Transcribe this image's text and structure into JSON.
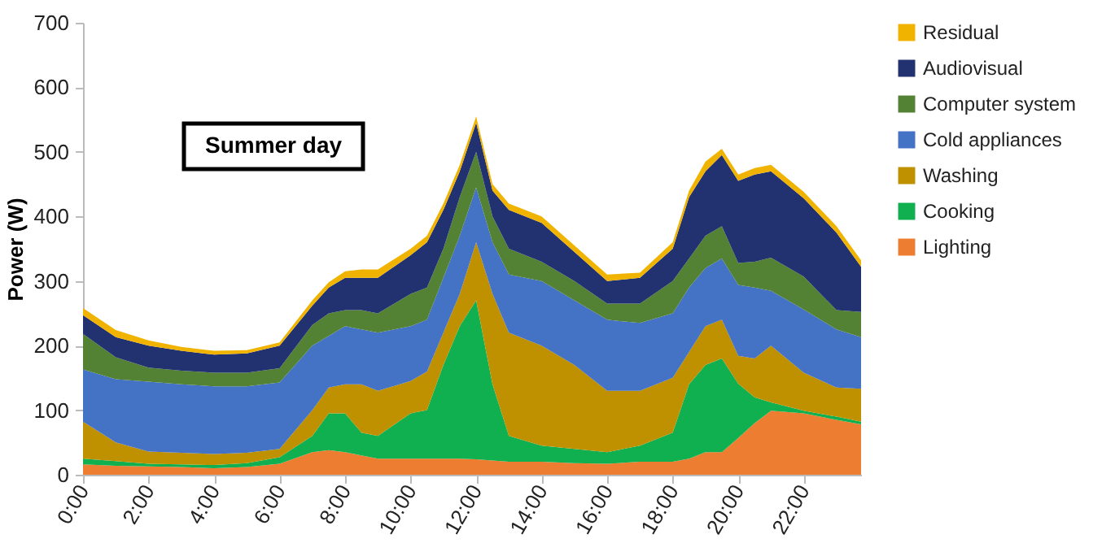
{
  "chart_data": {
    "type": "area",
    "stacked": true,
    "title": "Summer day",
    "ylabel": "Power (W)",
    "x": [
      0,
      1,
      2,
      3,
      4,
      5,
      6,
      7,
      7.5,
      8,
      8.5,
      9,
      10,
      10.5,
      11,
      11.5,
      12,
      12.5,
      13,
      14,
      15,
      16,
      17,
      18,
      18.5,
      19,
      19.5,
      20,
      20.5,
      21,
      22,
      23,
      23.75
    ],
    "xlim": [
      0,
      23.75
    ],
    "xticks": [
      {
        "value": 0,
        "label": "0:00"
      },
      {
        "value": 2,
        "label": "2:00"
      },
      {
        "value": 4,
        "label": "4:00"
      },
      {
        "value": 6,
        "label": "6:00"
      },
      {
        "value": 8,
        "label": "8:00"
      },
      {
        "value": 10,
        "label": "10:00"
      },
      {
        "value": 12,
        "label": "12:00"
      },
      {
        "value": 14,
        "label": "14:00"
      },
      {
        "value": 16,
        "label": "16:00"
      },
      {
        "value": 18,
        "label": "18:00"
      },
      {
        "value": 20,
        "label": "20:00"
      },
      {
        "value": 22,
        "label": "22:00"
      }
    ],
    "ylim": [
      0,
      700
    ],
    "yticks": [
      0,
      100,
      200,
      300,
      400,
      500,
      600,
      700
    ],
    "grid": false,
    "legend": "right",
    "series": [
      {
        "name": "Lighting",
        "color": "#ed7d31",
        "values": [
          16,
          14,
          13,
          12,
          10,
          12,
          17,
          35,
          38,
          35,
          30,
          25,
          25,
          25,
          25,
          25,
          24,
          22,
          20,
          20,
          18,
          17,
          20,
          20,
          25,
          35,
          35,
          57,
          80,
          99,
          95,
          85,
          78
        ]
      },
      {
        "name": "Cooking",
        "color": "#10b050",
        "values": [
          9,
          7,
          4,
          4,
          5,
          6,
          10,
          25,
          57,
          60,
          35,
          35,
          70,
          75,
          145,
          205,
          246,
          118,
          40,
          25,
          22,
          18,
          25,
          45,
          115,
          135,
          145,
          84,
          40,
          13,
          4,
          5,
          4
        ]
      },
      {
        "name": "Washing",
        "color": "#bf9000",
        "values": [
          57,
          29,
          19,
          18,
          17,
          16,
          13,
          40,
          40,
          45,
          75,
          70,
          50,
          60,
          50,
          50,
          90,
          140,
          160,
          155,
          130,
          95,
          85,
          85,
          50,
          60,
          60,
          43,
          60,
          88,
          59,
          45,
          51
        ]
      },
      {
        "name": "Cold appliances",
        "color": "#4472c4",
        "values": [
          81,
          98,
          108,
          106,
          105,
          103,
          103,
          100,
          80,
          90,
          85,
          90,
          85,
          80,
          85,
          90,
          85,
          80,
          90,
          100,
          100,
          110,
          105,
          100,
          100,
          90,
          95,
          110,
          110,
          85,
          98,
          90,
          80
        ]
      },
      {
        "name": "Computer system",
        "color": "#548235",
        "values": [
          55,
          34,
          22,
          21,
          21,
          21,
          22,
          32,
          35,
          25,
          30,
          30,
          50,
          50,
          45,
          60,
          55,
          40,
          40,
          30,
          30,
          25,
          30,
          50,
          45,
          50,
          50,
          34,
          40,
          51,
          51,
          30,
          39
        ]
      },
      {
        "name": "Audiovisual",
        "color": "#223170",
        "values": [
          29,
          31,
          34,
          31,
          28,
          30,
          35,
          30,
          40,
          50,
          50,
          55,
          60,
          70,
          60,
          40,
          45,
          40,
          60,
          60,
          45,
          35,
          40,
          50,
          95,
          100,
          110,
          127,
          135,
          134,
          121,
          120,
          70
        ]
      },
      {
        "name": "Residual",
        "color": "#f0b400",
        "values": [
          11,
          11,
          8,
          6,
          6,
          5,
          5,
          8,
          8,
          10,
          13,
          13,
          10,
          10,
          10,
          10,
          10,
          10,
          10,
          10,
          10,
          10,
          8,
          10,
          10,
          15,
          10,
          10,
          10,
          10,
          10,
          10,
          10
        ]
      }
    ]
  }
}
